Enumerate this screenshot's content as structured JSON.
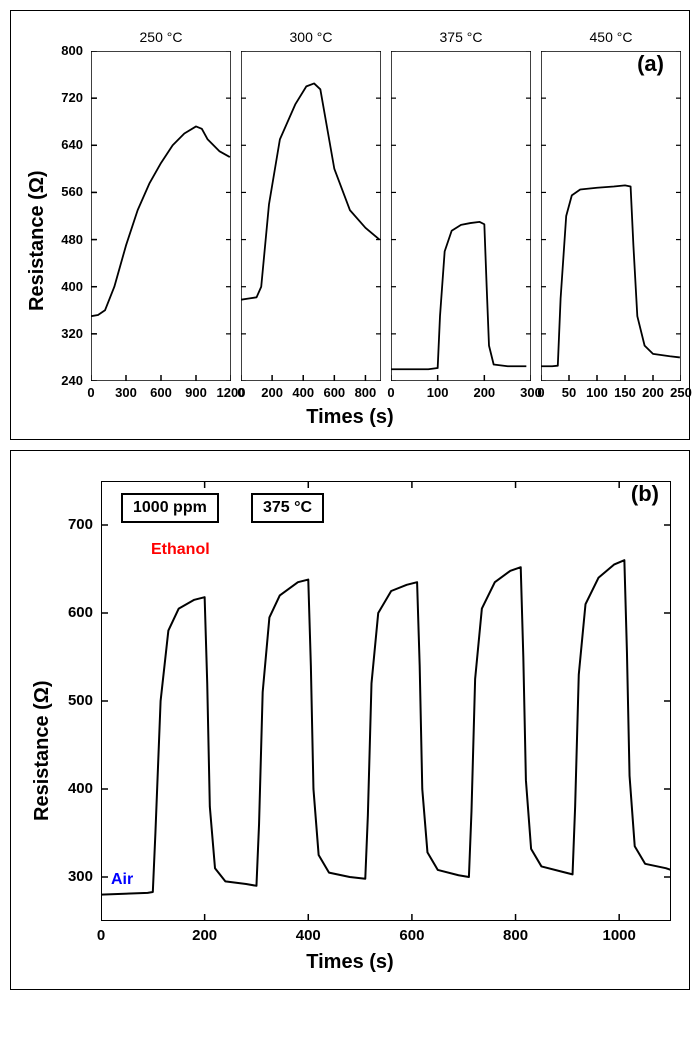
{
  "panelA": {
    "label": "(a)",
    "ylabel": "Resistance (Ω)",
    "xlabel": "Times (s)",
    "ylim": [
      240,
      800
    ],
    "yticks": [
      240,
      320,
      400,
      480,
      560,
      640,
      720,
      800
    ],
    "label_fontsize": 20,
    "tick_fontsize": 13,
    "line_color": "#000000",
    "line_width": 1.8,
    "background_color": "#ffffff",
    "border_color": "#000000",
    "subplots": [
      {
        "temp": "250 °C",
        "xlim": [
          0,
          1200
        ],
        "xticks": [
          0,
          300,
          600,
          900,
          1200
        ],
        "series": [
          [
            0,
            350
          ],
          [
            60,
            352
          ],
          [
            120,
            360
          ],
          [
            200,
            400
          ],
          [
            300,
            470
          ],
          [
            400,
            530
          ],
          [
            500,
            575
          ],
          [
            600,
            610
          ],
          [
            700,
            640
          ],
          [
            800,
            660
          ],
          [
            900,
            672
          ],
          [
            950,
            668
          ],
          [
            1000,
            650
          ],
          [
            1100,
            630
          ],
          [
            1190,
            620
          ]
        ]
      },
      {
        "temp": "300 °C",
        "xlim": [
          0,
          900
        ],
        "xticks": [
          0,
          200,
          400,
          600,
          800
        ],
        "series": [
          [
            0,
            378
          ],
          [
            50,
            380
          ],
          [
            100,
            382
          ],
          [
            130,
            400
          ],
          [
            180,
            540
          ],
          [
            250,
            650
          ],
          [
            350,
            710
          ],
          [
            420,
            740
          ],
          [
            470,
            745
          ],
          [
            510,
            735
          ],
          [
            560,
            660
          ],
          [
            600,
            600
          ],
          [
            700,
            530
          ],
          [
            800,
            500
          ],
          [
            890,
            480
          ]
        ]
      },
      {
        "temp": "375 °C",
        "xlim": [
          0,
          300
        ],
        "xticks": [
          0,
          100,
          200,
          300
        ],
        "series": [
          [
            0,
            260
          ],
          [
            80,
            260
          ],
          [
            100,
            262
          ],
          [
            105,
            350
          ],
          [
            115,
            460
          ],
          [
            130,
            495
          ],
          [
            150,
            505
          ],
          [
            170,
            508
          ],
          [
            190,
            510
          ],
          [
            200,
            506
          ],
          [
            205,
            400
          ],
          [
            210,
            300
          ],
          [
            220,
            268
          ],
          [
            250,
            265
          ],
          [
            290,
            265
          ]
        ]
      },
      {
        "temp": "450 °C",
        "xlim": [
          0,
          250
        ],
        "xticks": [
          0,
          50,
          100,
          150,
          200,
          250
        ],
        "series": [
          [
            0,
            265
          ],
          [
            20,
            265
          ],
          [
            30,
            266
          ],
          [
            35,
            380
          ],
          [
            45,
            520
          ],
          [
            55,
            555
          ],
          [
            70,
            565
          ],
          [
            100,
            568
          ],
          [
            130,
            570
          ],
          [
            150,
            572
          ],
          [
            160,
            570
          ],
          [
            165,
            470
          ],
          [
            172,
            350
          ],
          [
            185,
            300
          ],
          [
            200,
            286
          ],
          [
            230,
            282
          ],
          [
            248,
            280
          ]
        ]
      }
    ]
  },
  "panelB": {
    "label": "(b)",
    "ylabel": "Resistance (Ω)",
    "xlabel": "Times (s)",
    "ylim": [
      250,
      750
    ],
    "yticks": [
      300,
      400,
      500,
      600,
      700
    ],
    "xlim": [
      0,
      1100
    ],
    "xticks": [
      0,
      200,
      400,
      600,
      800,
      1000
    ],
    "label_fontsize": 20,
    "tick_fontsize": 13,
    "line_color": "#000000",
    "line_width": 2.0,
    "background_color": "#ffffff",
    "border_color": "#000000",
    "badges": {
      "ppm": "1000 ppm",
      "temp": "375 °C"
    },
    "annotations": {
      "ethanol": {
        "text": "Ethanol",
        "color": "#ff0000"
      },
      "air": {
        "text": "Air",
        "color": "#0000ff"
      }
    },
    "series": [
      [
        0,
        280
      ],
      [
        90,
        282
      ],
      [
        100,
        283
      ],
      [
        105,
        350
      ],
      [
        115,
        500
      ],
      [
        130,
        580
      ],
      [
        150,
        605
      ],
      [
        180,
        615
      ],
      [
        200,
        618
      ],
      [
        205,
        520
      ],
      [
        210,
        380
      ],
      [
        220,
        310
      ],
      [
        240,
        295
      ],
      [
        280,
        292
      ],
      [
        300,
        290
      ],
      [
        305,
        360
      ],
      [
        312,
        510
      ],
      [
        325,
        595
      ],
      [
        345,
        620
      ],
      [
        380,
        635
      ],
      [
        400,
        638
      ],
      [
        405,
        540
      ],
      [
        410,
        400
      ],
      [
        420,
        325
      ],
      [
        440,
        305
      ],
      [
        480,
        300
      ],
      [
        510,
        298
      ],
      [
        515,
        370
      ],
      [
        522,
        520
      ],
      [
        535,
        600
      ],
      [
        560,
        625
      ],
      [
        590,
        632
      ],
      [
        610,
        635
      ],
      [
        615,
        540
      ],
      [
        620,
        400
      ],
      [
        630,
        328
      ],
      [
        650,
        308
      ],
      [
        690,
        302
      ],
      [
        710,
        300
      ],
      [
        715,
        375
      ],
      [
        722,
        525
      ],
      [
        735,
        605
      ],
      [
        760,
        635
      ],
      [
        790,
        648
      ],
      [
        810,
        652
      ],
      [
        815,
        550
      ],
      [
        820,
        410
      ],
      [
        830,
        332
      ],
      [
        850,
        312
      ],
      [
        890,
        306
      ],
      [
        910,
        303
      ],
      [
        915,
        380
      ],
      [
        922,
        530
      ],
      [
        935,
        610
      ],
      [
        960,
        640
      ],
      [
        990,
        655
      ],
      [
        1010,
        660
      ],
      [
        1015,
        555
      ],
      [
        1020,
        415
      ],
      [
        1030,
        335
      ],
      [
        1050,
        315
      ],
      [
        1090,
        310
      ],
      [
        1100,
        308
      ]
    ]
  }
}
